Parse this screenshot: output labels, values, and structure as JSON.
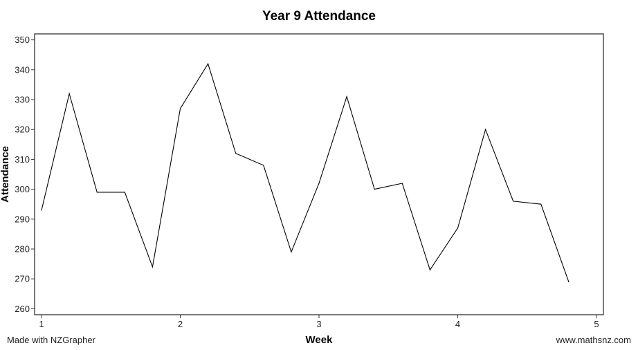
{
  "chart_data": {
    "type": "line",
    "title": "Year 9 Attendance",
    "xlabel": "Week",
    "ylabel": "Attendance",
    "xlim": [
      0.95,
      5.05
    ],
    "ylim": [
      258,
      352
    ],
    "x_ticks": [
      1,
      2,
      3,
      4,
      5
    ],
    "y_ticks": [
      260,
      270,
      280,
      290,
      300,
      310,
      320,
      330,
      340,
      350
    ],
    "grid": false,
    "line_color": "#000000",
    "series": [
      {
        "x": [
          1.0,
          1.2,
          1.4,
          1.6,
          1.8,
          2.0,
          2.2,
          2.4,
          2.6,
          2.8,
          3.0,
          3.2,
          3.4,
          3.6,
          3.8,
          4.0,
          4.2,
          4.4,
          4.6,
          4.8
        ],
        "values": [
          293,
          332,
          299,
          299,
          274,
          327,
          342,
          312,
          308,
          279,
          302,
          331,
          300,
          302,
          273,
          287,
          320,
          296,
          295,
          269
        ]
      }
    ]
  },
  "footer": {
    "left": "Made with NZGrapher",
    "right": "www.mathsnz.com"
  }
}
